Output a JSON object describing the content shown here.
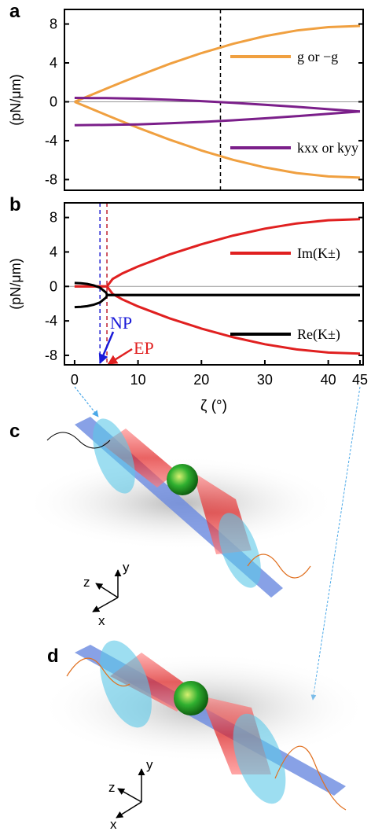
{
  "chart_data": [
    {
      "type": "line",
      "panel": "a",
      "ylabel": "(pN/μm)",
      "x": [
        0,
        2.5,
        5,
        7.5,
        10,
        15,
        20,
        25,
        30,
        35,
        40,
        45
      ],
      "series": [
        {
          "name": "g or −g",
          "color": "#f0a040",
          "values": [
            0,
            0.68,
            1.35,
            2.02,
            2.67,
            3.9,
            5.01,
            5.97,
            6.75,
            7.33,
            7.68,
            7.8
          ]
        },
        {
          "color": "#f0a040",
          "values": [
            0,
            -0.68,
            -1.35,
            -2.02,
            -2.67,
            -3.9,
            -5.01,
            -5.97,
            -6.75,
            -7.33,
            -7.68,
            -7.8
          ]
        },
        {
          "name": "kxx or kyy",
          "color": "#7b1f8a",
          "values": [
            0.4,
            0.39,
            0.38,
            0.35,
            0.32,
            0.21,
            0.07,
            -0.1,
            -0.3,
            -0.52,
            -0.76,
            -1
          ]
        },
        {
          "color": "#7b1f8a",
          "values": [
            -2.4,
            -2.39,
            -2.38,
            -2.35,
            -2.32,
            -2.21,
            -2.07,
            -1.9,
            -1.7,
            -1.48,
            -1.24,
            -1
          ]
        }
      ],
      "xlim": [
        -1.6,
        45.5
      ],
      "ylim": [
        -9.1,
        9.5
      ],
      "yticks": [
        8,
        4,
        0,
        -4,
        -8
      ],
      "zero_line": true,
      "vlines": [
        {
          "x": 23,
          "color": "#000000"
        }
      ]
    },
    {
      "type": "line",
      "panel": "b",
      "ylabel": "(pN/μm)",
      "xlabel": "ζ (°)",
      "x": [
        0,
        1,
        2,
        3,
        4,
        5,
        5.1,
        6,
        7.5,
        10,
        15,
        20,
        25,
        30,
        35,
        40,
        45
      ],
      "series": [
        {
          "name": "Im(K±)",
          "color": "#e02020",
          "values": [
            0,
            0,
            0,
            0,
            0,
            0,
            0,
            0.87,
            1.5,
            2.32,
            3.71,
            4.89,
            5.9,
            6.71,
            7.31,
            7.68,
            7.8
          ]
        },
        {
          "color": "#e02020",
          "values": [
            0,
            0,
            0,
            0,
            0,
            0,
            0,
            -0.87,
            -1.5,
            -2.32,
            -3.71,
            -4.89,
            -5.9,
            -6.71,
            -7.31,
            -7.68,
            -7.8
          ]
        },
        {
          "name": "Re(K±)",
          "color": "#000000",
          "values": [
            0.4,
            0.37,
            0.29,
            0.13,
            -0.14,
            -0.74,
            -1,
            -1,
            -1,
            -1,
            -1,
            -1,
            -1,
            -1,
            -1,
            -1,
            -1
          ]
        },
        {
          "color": "#000000",
          "values": [
            -2.4,
            -2.37,
            -2.29,
            -2.13,
            -1.86,
            -1.26,
            -1,
            -1,
            -1,
            -1,
            -1,
            -1,
            -1,
            -1,
            -1,
            -1,
            -1
          ]
        }
      ],
      "xlim": [
        -1.6,
        45.5
      ],
      "ylim": [
        -9.1,
        9.7
      ],
      "yticks": [
        8,
        4,
        0,
        -4,
        -8
      ],
      "xticks": [
        0,
        10,
        20,
        30,
        40,
        45
      ],
      "zero_line": true,
      "vlines": [
        {
          "x": 4,
          "color": "#2020d0"
        },
        {
          "x": 5.1,
          "color": "#c02030"
        }
      ],
      "annotations": [
        {
          "text": "NP",
          "color": "#1a1ad8"
        },
        {
          "text": "EP",
          "color": "#e02020"
        }
      ]
    }
  ],
  "illustrations": [
    {
      "label": "c",
      "axes": [
        "x",
        "y",
        "z"
      ]
    },
    {
      "label": "d",
      "axes": [
        "x",
        "y",
        "z"
      ]
    }
  ]
}
